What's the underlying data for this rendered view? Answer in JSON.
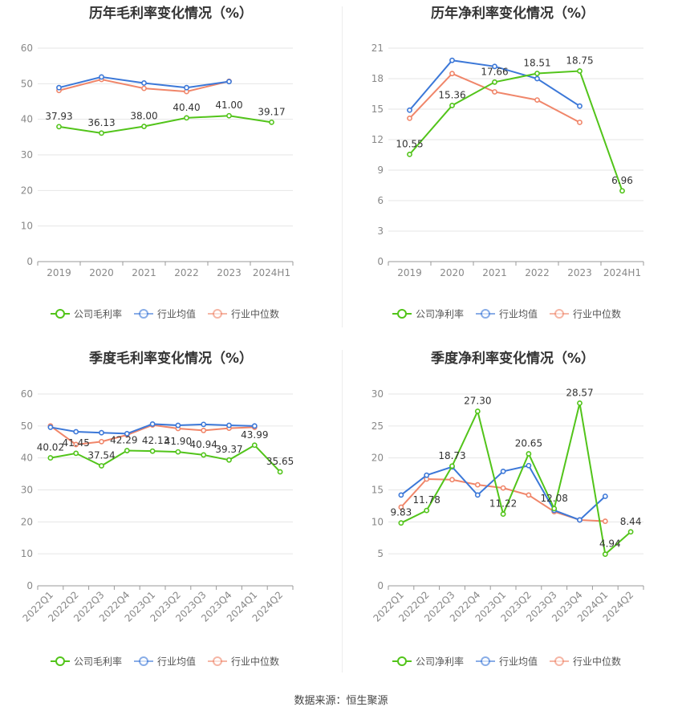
{
  "colors": {
    "company": "#52c41a",
    "industry_avg": "#3c78d8",
    "industry_median": "#f0866a"
  },
  "source_text": "数据来源：恒生聚源",
  "chart_data": [
    {
      "type": "line",
      "title": "历年毛利率变化情况（%）",
      "categories": [
        "2019",
        "2020",
        "2021",
        "2022",
        "2023",
        "2024H1"
      ],
      "ylim": [
        0,
        60
      ],
      "yticks": [
        0,
        10,
        20,
        30,
        40,
        50,
        60
      ],
      "grid": true,
      "legend": "bottom",
      "series": [
        {
          "name": "公司毛利率",
          "color": "#52c41a",
          "values": [
            37.93,
            36.13,
            38.0,
            40.4,
            41.0,
            39.17
          ],
          "labels": [
            "37.93",
            "36.13",
            "38.00",
            "40.40",
            "41.00",
            "39.17"
          ]
        },
        {
          "name": "行业均值",
          "color": "#3c78d8",
          "values": [
            48.9,
            51.9,
            50.2,
            48.9,
            50.6,
            null
          ]
        },
        {
          "name": "行业中位数",
          "color": "#f0866a",
          "values": [
            48.1,
            51.2,
            48.7,
            47.8,
            50.7,
            null
          ]
        }
      ]
    },
    {
      "type": "line",
      "title": "历年净利率变化情况（%）",
      "categories": [
        "2019",
        "2020",
        "2021",
        "2022",
        "2023",
        "2024H1"
      ],
      "ylim": [
        0,
        21
      ],
      "yticks": [
        0,
        3,
        6,
        9,
        12,
        15,
        18,
        21
      ],
      "grid": true,
      "legend": "bottom",
      "series": [
        {
          "name": "公司净利率",
          "color": "#52c41a",
          "values": [
            10.55,
            15.36,
            17.66,
            18.51,
            18.75,
            6.96
          ],
          "labels": [
            "10.55",
            "15.36",
            "17.66",
            "18.51",
            "18.75",
            "6.96"
          ]
        },
        {
          "name": "行业均值",
          "color": "#3c78d8",
          "values": [
            14.9,
            19.8,
            19.2,
            18.0,
            15.3,
            null
          ]
        },
        {
          "name": "行业中位数",
          "color": "#f0866a",
          "values": [
            14.1,
            18.5,
            16.7,
            15.9,
            13.7,
            null
          ]
        }
      ]
    },
    {
      "type": "line",
      "title": "季度毛利率变化情况（%）",
      "categories": [
        "2022Q1",
        "2022Q2",
        "2022Q3",
        "2022Q4",
        "2023Q1",
        "2023Q2",
        "2023Q3",
        "2023Q4",
        "2024Q1",
        "2024Q2"
      ],
      "ylim": [
        0,
        60
      ],
      "yticks": [
        0,
        10,
        20,
        30,
        40,
        50,
        60
      ],
      "grid": true,
      "legend": "bottom",
      "series": [
        {
          "name": "公司毛利率",
          "color": "#52c41a",
          "values": [
            40.02,
            41.45,
            37.54,
            42.29,
            42.13,
            41.9,
            40.94,
            39.37,
            43.99,
            35.65
          ],
          "labels": [
            "40.02",
            "41.45",
            "37.54",
            "42.29",
            "42.13",
            "41.90",
            "40.94",
            "39.37",
            "43.99",
            "35.65"
          ]
        },
        {
          "name": "行业均值",
          "color": "#3c78d8",
          "values": [
            49.6,
            48.2,
            47.9,
            47.6,
            50.6,
            50.2,
            50.5,
            50.2,
            50.0,
            null
          ]
        },
        {
          "name": "行业中位数",
          "color": "#f0866a",
          "values": [
            50.0,
            44.2,
            45.1,
            47.2,
            50.3,
            49.2,
            48.6,
            49.3,
            49.6,
            null
          ]
        }
      ]
    },
    {
      "type": "line",
      "title": "季度净利率变化情况（%）",
      "categories": [
        "2022Q1",
        "2022Q2",
        "2022Q3",
        "2022Q4",
        "2023Q1",
        "2023Q2",
        "2023Q3",
        "2023Q4",
        "2024Q1",
        "2024Q2"
      ],
      "ylim": [
        0,
        30
      ],
      "yticks": [
        0,
        5,
        10,
        15,
        20,
        25,
        30
      ],
      "grid": true,
      "legend": "bottom",
      "series": [
        {
          "name": "公司净利率",
          "color": "#52c41a",
          "values": [
            9.83,
            11.78,
            18.73,
            27.3,
            11.22,
            20.65,
            12.08,
            28.57,
            4.94,
            8.44
          ],
          "labels": [
            "9.83",
            "11.78",
            "18.73",
            "27.30",
            "11.22",
            "20.65",
            "12.08",
            "28.57",
            "4.94",
            "8.44"
          ]
        },
        {
          "name": "行业均值",
          "color": "#3c78d8",
          "values": [
            14.2,
            17.3,
            18.6,
            14.2,
            17.9,
            18.8,
            11.8,
            10.3,
            14.0,
            null
          ]
        },
        {
          "name": "行业中位数",
          "color": "#f0866a",
          "values": [
            12.3,
            16.7,
            16.6,
            15.8,
            15.3,
            14.2,
            11.6,
            10.3,
            10.1,
            null
          ]
        }
      ]
    }
  ]
}
